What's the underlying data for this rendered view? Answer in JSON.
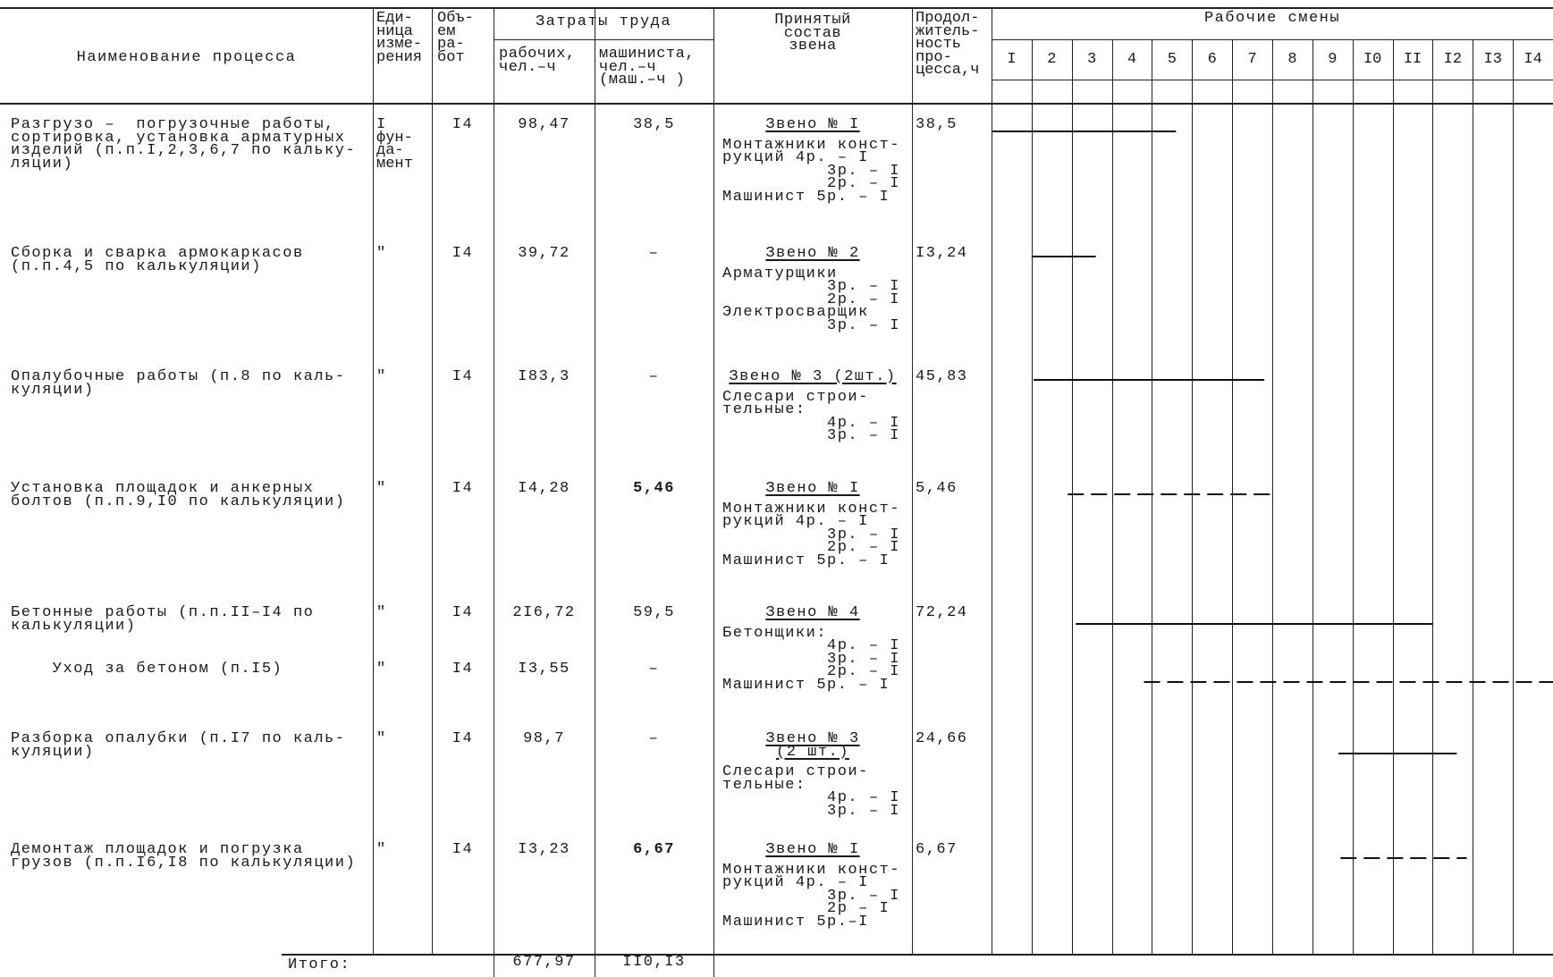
{
  "header": {
    "process_name": "Наименование процесса",
    "unit": [
      "Еди-",
      "ница",
      "изме-",
      "рения"
    ],
    "volume": [
      "Объ-",
      "ем",
      "ра-",
      "бот"
    ],
    "labor_costs": "Затраты труда",
    "workers": [
      "рабочих,",
      "чел.–ч"
    ],
    "machinist": [
      "машиниста,",
      "чел.–ч",
      "(маш.–ч )"
    ],
    "crew": [
      "Принятый",
      "состав",
      "звена"
    ],
    "duration": [
      "Продол-",
      "житель-",
      "ность",
      "про-",
      "цесса,ч"
    ],
    "shifts_title": "Рабочие смены",
    "shifts": [
      "I",
      "2",
      "3",
      "4",
      "5",
      "6",
      "7",
      "8",
      "9",
      "I0",
      "II",
      "I2",
      "I3",
      "I4"
    ]
  },
  "rows": [
    {
      "name": [
        "Разгрузо –  погрузочные работы,",
        "сортировка, установка арматурных",
        "изделий (п.п.I,2,3,6,7 по кальку-",
        "ляции)"
      ],
      "unit": [
        "I",
        "фун-",
        "да-",
        "мент"
      ],
      "volume": "I4",
      "workers": "98,47",
      "machinist": "38,5",
      "crew_title": [
        "Звено № I"
      ],
      "crew": [
        "Монтажники конст-",
        "рукций 4р. – I",
        "          3р. – I",
        "          2р. – I",
        "Машинист 5р. – I"
      ],
      "duration": "38,5",
      "bar": {
        "start": 0,
        "end": 4.6,
        "style": "solid"
      }
    },
    {
      "name": [
        "Сборка и сварка армокаркасов",
        "(п.п.4,5 по калькуляции)"
      ],
      "unit": [
        "\""
      ],
      "volume": "I4",
      "workers": "39,72",
      "machinist": "–",
      "crew_title": [
        "Звено № 2"
      ],
      "crew": [
        "Арматурщики",
        "          3р. – I",
        "          2р. – I",
        "Электросварщик",
        "          3р. – I"
      ],
      "duration": "I3,24",
      "bar": {
        "start": 1.0,
        "end": 2.6,
        "style": "solid"
      }
    },
    {
      "name": [
        "Опалубочные работы (п.8 по каль-",
        "куляции)"
      ],
      "unit": [
        "\""
      ],
      "volume": "I4",
      "workers": "I83,3",
      "machinist": "–",
      "crew_title": [
        "Звено № 3 (2шт.)"
      ],
      "crew": [
        "Слесари строи-",
        "тельные:",
        "          4р. – I",
        "          3р. – I"
      ],
      "duration": "45,83",
      "bar": {
        "start": 1.05,
        "end": 6.8,
        "style": "solid"
      }
    },
    {
      "name": [
        "Установка площадок и анкерных",
        "болтов (п.п.9,I0 по калькуляции)"
      ],
      "unit": [
        "\""
      ],
      "volume": "I4",
      "workers": "I4,28",
      "machinist": "5,46",
      "crew_title": [
        "Звено № I"
      ],
      "crew": [
        "Монтажники конст-",
        "рукций 4р. – I",
        "          3р. – I",
        "          2р. – I",
        "Машинист 5р. – I"
      ],
      "duration": "5,46",
      "bar": {
        "start": 1.9,
        "end": 7.05,
        "style": "dashed"
      }
    },
    {
      "name": [
        "Бетонные работы (п.п.II–I4 по",
        "калькуляции)"
      ],
      "unit": [
        "\""
      ],
      "volume": "I4",
      "workers": "2I6,72",
      "machinist": "59,5",
      "crew_title": [
        "Звено № 4"
      ],
      "crew": [
        "Бетонщики:",
        "          4р. – I",
        "          3р. – I",
        "          2р. – I",
        "Машинист 5р. – I"
      ],
      "duration": "72,24",
      "bar": {
        "start": 2.1,
        "end": 11.0,
        "style": "solid"
      }
    },
    {
      "name": [
        "    Уход за бетоном (п.I5)"
      ],
      "unit": [
        "\""
      ],
      "volume": "I4",
      "workers": "I3,55",
      "machinist": "–",
      "crew_title": [],
      "crew": [],
      "duration": "",
      "bar": {
        "start": 3.8,
        "end": 14,
        "style": "dashed"
      }
    },
    {
      "name": [
        "Разборка опалубки (п.I7 по каль-",
        "куляции)"
      ],
      "unit": [
        "\""
      ],
      "volume": "I4",
      "workers": "98,7",
      "machinist": "–",
      "crew_title": [
        "Звено № 3",
        "(2 шт.)"
      ],
      "crew": [
        "Слесари строи-",
        "тельные:",
        "          4р. – I",
        "          3р. – I"
      ],
      "duration": "24,66",
      "bar": {
        "start": 8.65,
        "end": 11.6,
        "style": "solid"
      }
    },
    {
      "name": [
        "Демонтаж площадок и погрузка",
        "грузов (п.п.I6,I8 по калькуляции)"
      ],
      "unit": [
        "\""
      ],
      "volume": "I4",
      "workers": "I3,23",
      "machinist": "6,67",
      "crew_title": [
        "Звено № I"
      ],
      "crew": [
        "Монтажники конст-",
        "рукций 4р. – I",
        "          3р. – I",
        "          2р – I",
        "Машинист 5р.–I"
      ],
      "duration": "6,67",
      "bar": {
        "start": 8.7,
        "end": 11.85,
        "style": "dashed"
      }
    }
  ],
  "total": {
    "label": "Итого:",
    "workers": "677,97",
    "machinist": "II0,I3"
  }
}
